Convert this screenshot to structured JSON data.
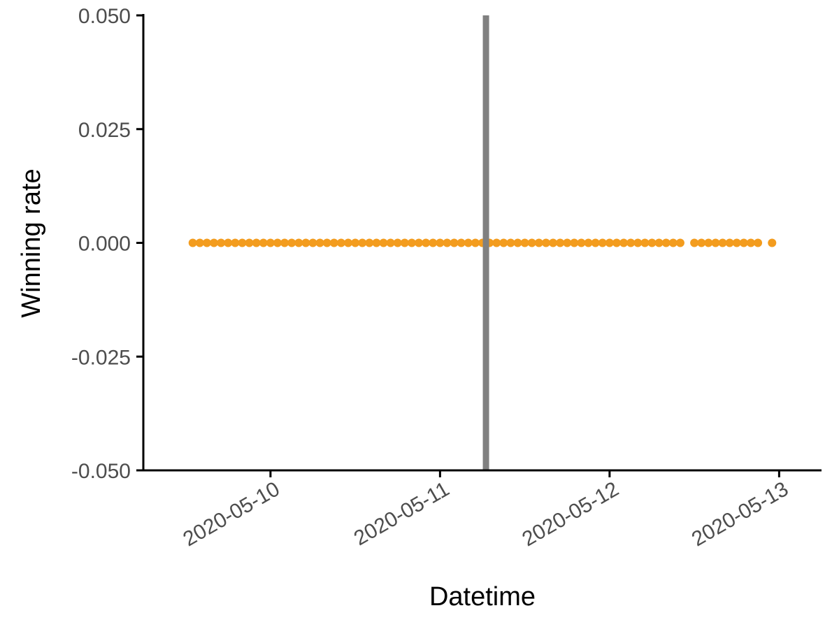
{
  "chart_data": {
    "type": "scatter",
    "xlabel": "Datetime",
    "ylabel": "Winning rate",
    "x_axis_type": "datetime",
    "xlim": [
      "2020-05-09 06:00",
      "2020-05-13 06:00"
    ],
    "ylim": [
      -0.05,
      0.05
    ],
    "x_ticks": [
      "2020-05-10",
      "2020-05-11",
      "2020-05-12",
      "2020-05-13"
    ],
    "y_ticks": [
      0.05,
      0.025,
      0.0,
      -0.025,
      -0.05
    ],
    "y_tick_labels": [
      "0.050",
      "0.025",
      "0.000",
      "-0.025",
      "-0.050"
    ],
    "x_tick_label_rotation_deg": -30,
    "grid": false,
    "legend": "none",
    "point_color": "#F39C1E",
    "vline_color": "#808080",
    "vline_x": "2020-05-11 06:30",
    "series": [
      {
        "color": "#F39C1E",
        "x_start": "2020-05-09 13:00",
        "x_end": "2020-05-12 23:00",
        "interval_hours": 1,
        "gaps": [
          "2020-05-12 11:00",
          "2020-05-12 22:00"
        ],
        "y_constant": 0.0
      }
    ]
  }
}
